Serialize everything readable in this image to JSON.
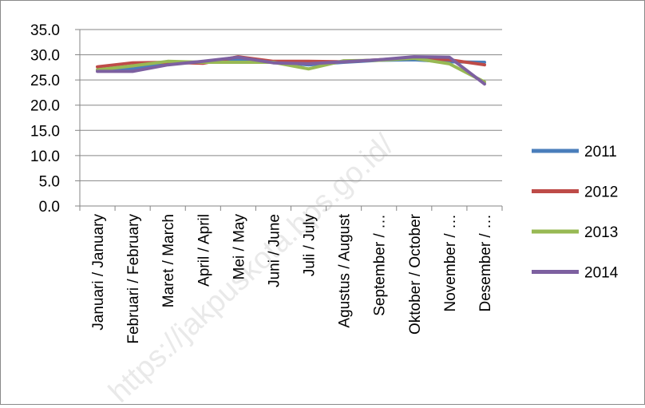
{
  "watermark": "https://jakpuskota.bps.go.id/",
  "chart_data": {
    "type": "line",
    "categories": [
      "Januari / January",
      "Februari / February",
      "Maret / March",
      "April / April",
      "Mei / May",
      "Juni / June",
      "Juli / July",
      "Agustus / August",
      "September / …",
      "Oktober / October",
      "November / …",
      "Desember / …"
    ],
    "series": [
      {
        "name": "2011",
        "color": "#4a7ebb",
        "values": [
          27.0,
          27.2,
          28.3,
          28.6,
          29.0,
          28.6,
          28.0,
          28.5,
          28.9,
          29.0,
          28.6,
          28.5
        ]
      },
      {
        "name": "2012",
        "color": "#be4b48",
        "values": [
          27.6,
          28.4,
          28.5,
          28.3,
          29.6,
          28.7,
          28.7,
          28.6,
          29.0,
          29.4,
          29.0,
          28.0
        ]
      },
      {
        "name": "2013",
        "color": "#98b954",
        "values": [
          27.0,
          27.8,
          28.7,
          28.5,
          28.5,
          28.5,
          27.2,
          28.8,
          28.9,
          29.3,
          28.2,
          24.6
        ]
      },
      {
        "name": "2014",
        "color": "#7d60a0",
        "values": [
          26.7,
          26.7,
          28.0,
          28.7,
          29.5,
          28.4,
          28.2,
          28.6,
          29.0,
          29.6,
          29.5,
          24.2
        ]
      }
    ],
    "y_ticks": [
      "0.0",
      "5.0",
      "10.0",
      "15.0",
      "20.0",
      "25.0",
      "30.0",
      "35.0"
    ],
    "ylim": [
      0,
      35
    ],
    "grid": true,
    "legend_position": "right"
  }
}
